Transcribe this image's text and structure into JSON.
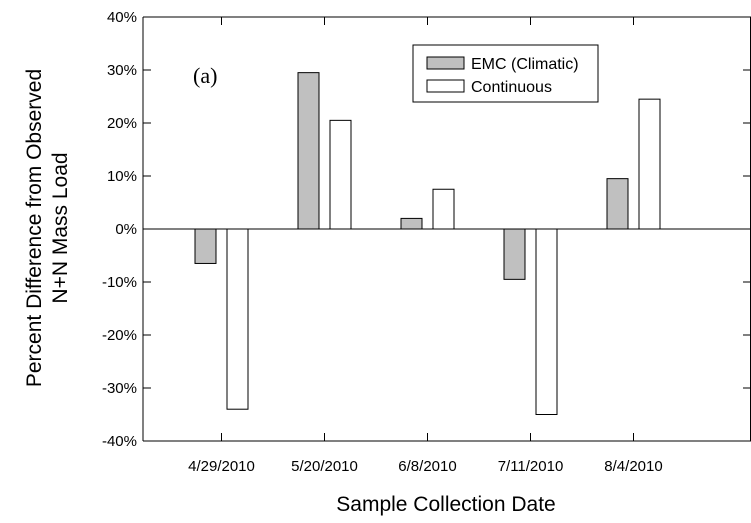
{
  "chart_data": {
    "type": "bar",
    "panel_label": "(a)",
    "categories": [
      "4/29/2010",
      "5/20/2010",
      "6/8/2010",
      "7/11/2010",
      "8/4/2010"
    ],
    "series": [
      {
        "name": "EMC (Climatic)",
        "values": [
          -6.5,
          29.5,
          2,
          -9.5,
          9.5
        ],
        "color": "#c0c0c0"
      },
      {
        "name": "Continuous",
        "values": [
          -34,
          20.5,
          7.5,
          -35,
          24.5
        ],
        "color": "#ffffff"
      }
    ],
    "xlabel": "Sample Collection Date",
    "ylabel_line1": "Percent Difference from Observed",
    "ylabel_line2": "N+N Mass Load",
    "ylim": [
      -40,
      40
    ],
    "yticks": [
      -40,
      -30,
      -20,
      -10,
      0,
      10,
      20,
      30,
      40
    ],
    "ytick_labels": [
      "-40%",
      "-30%",
      "-20%",
      "-10%",
      "0%",
      "10%",
      "20%",
      "30%",
      "40%"
    ],
    "grid": false,
    "legend_position": "top-right"
  }
}
